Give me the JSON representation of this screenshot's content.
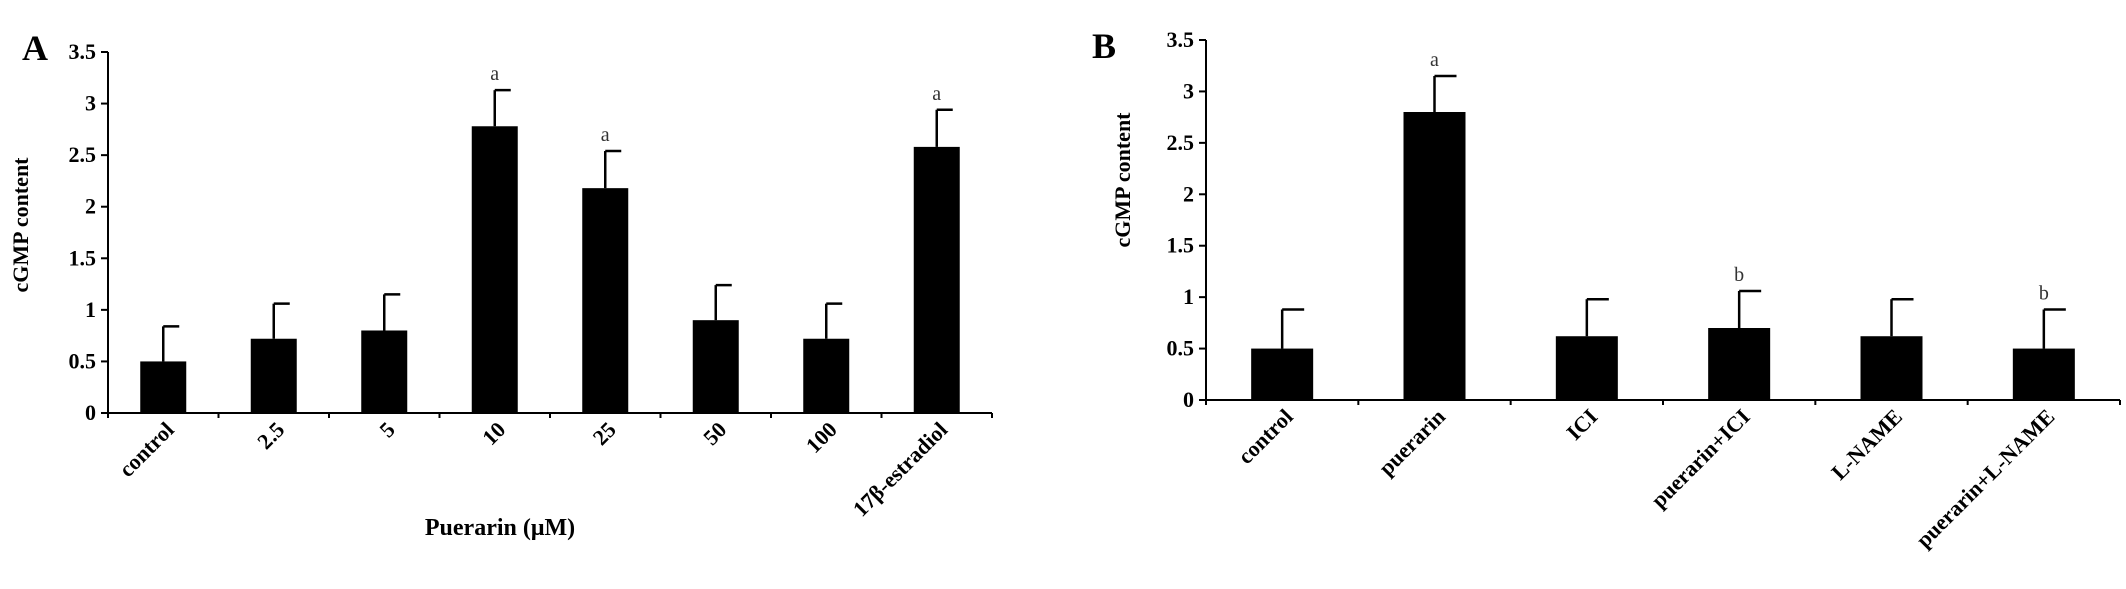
{
  "chart_data": [
    {
      "type": "bar",
      "panel_label": "A",
      "ylabel": "cGMP content",
      "xlabel": "Puerarin (μM)",
      "ylim": [
        0,
        3.5
      ],
      "yticks": [
        0,
        0.5,
        1,
        1.5,
        2,
        2.5,
        3,
        3.5
      ],
      "ytick_labels": [
        "0",
        "0.5",
        "1",
        "1.5",
        "2",
        "2.5",
        "3",
        "3.5"
      ],
      "categories": [
        "control",
        "2.5",
        "5",
        "10",
        "25",
        "50",
        "100",
        "17β-estradiol"
      ],
      "values": [
        0.5,
        0.72,
        0.8,
        2.78,
        2.18,
        0.9,
        0.72,
        2.58
      ],
      "errors": [
        0.34,
        0.34,
        0.35,
        0.35,
        0.36,
        0.34,
        0.34,
        0.36
      ],
      "annotations": [
        "",
        "",
        "",
        "a",
        "a",
        "",
        "",
        "a"
      ],
      "bar_color": "#000000",
      "grid": false
    },
    {
      "type": "bar",
      "panel_label": "B",
      "ylabel": "cGMP content",
      "xlabel": "",
      "ylim": [
        0,
        3.5
      ],
      "yticks": [
        0,
        0.5,
        1,
        1.5,
        2,
        2.5,
        3,
        3.5
      ],
      "ytick_labels": [
        "0",
        "0.5",
        "1",
        "1.5",
        "2",
        "2.5",
        "3",
        "3.5"
      ],
      "categories": [
        "control",
        "puerarin",
        "ICI",
        "puerarin+ICI",
        "L-NAME",
        "puerarin+L-NAME"
      ],
      "values": [
        0.5,
        2.8,
        0.62,
        0.7,
        0.62,
        0.5
      ],
      "errors": [
        0.38,
        0.35,
        0.36,
        0.36,
        0.36,
        0.38
      ],
      "annotations": [
        "",
        "a",
        "",
        "b",
        "",
        "b"
      ],
      "bar_color": "#000000",
      "grid": false
    }
  ]
}
